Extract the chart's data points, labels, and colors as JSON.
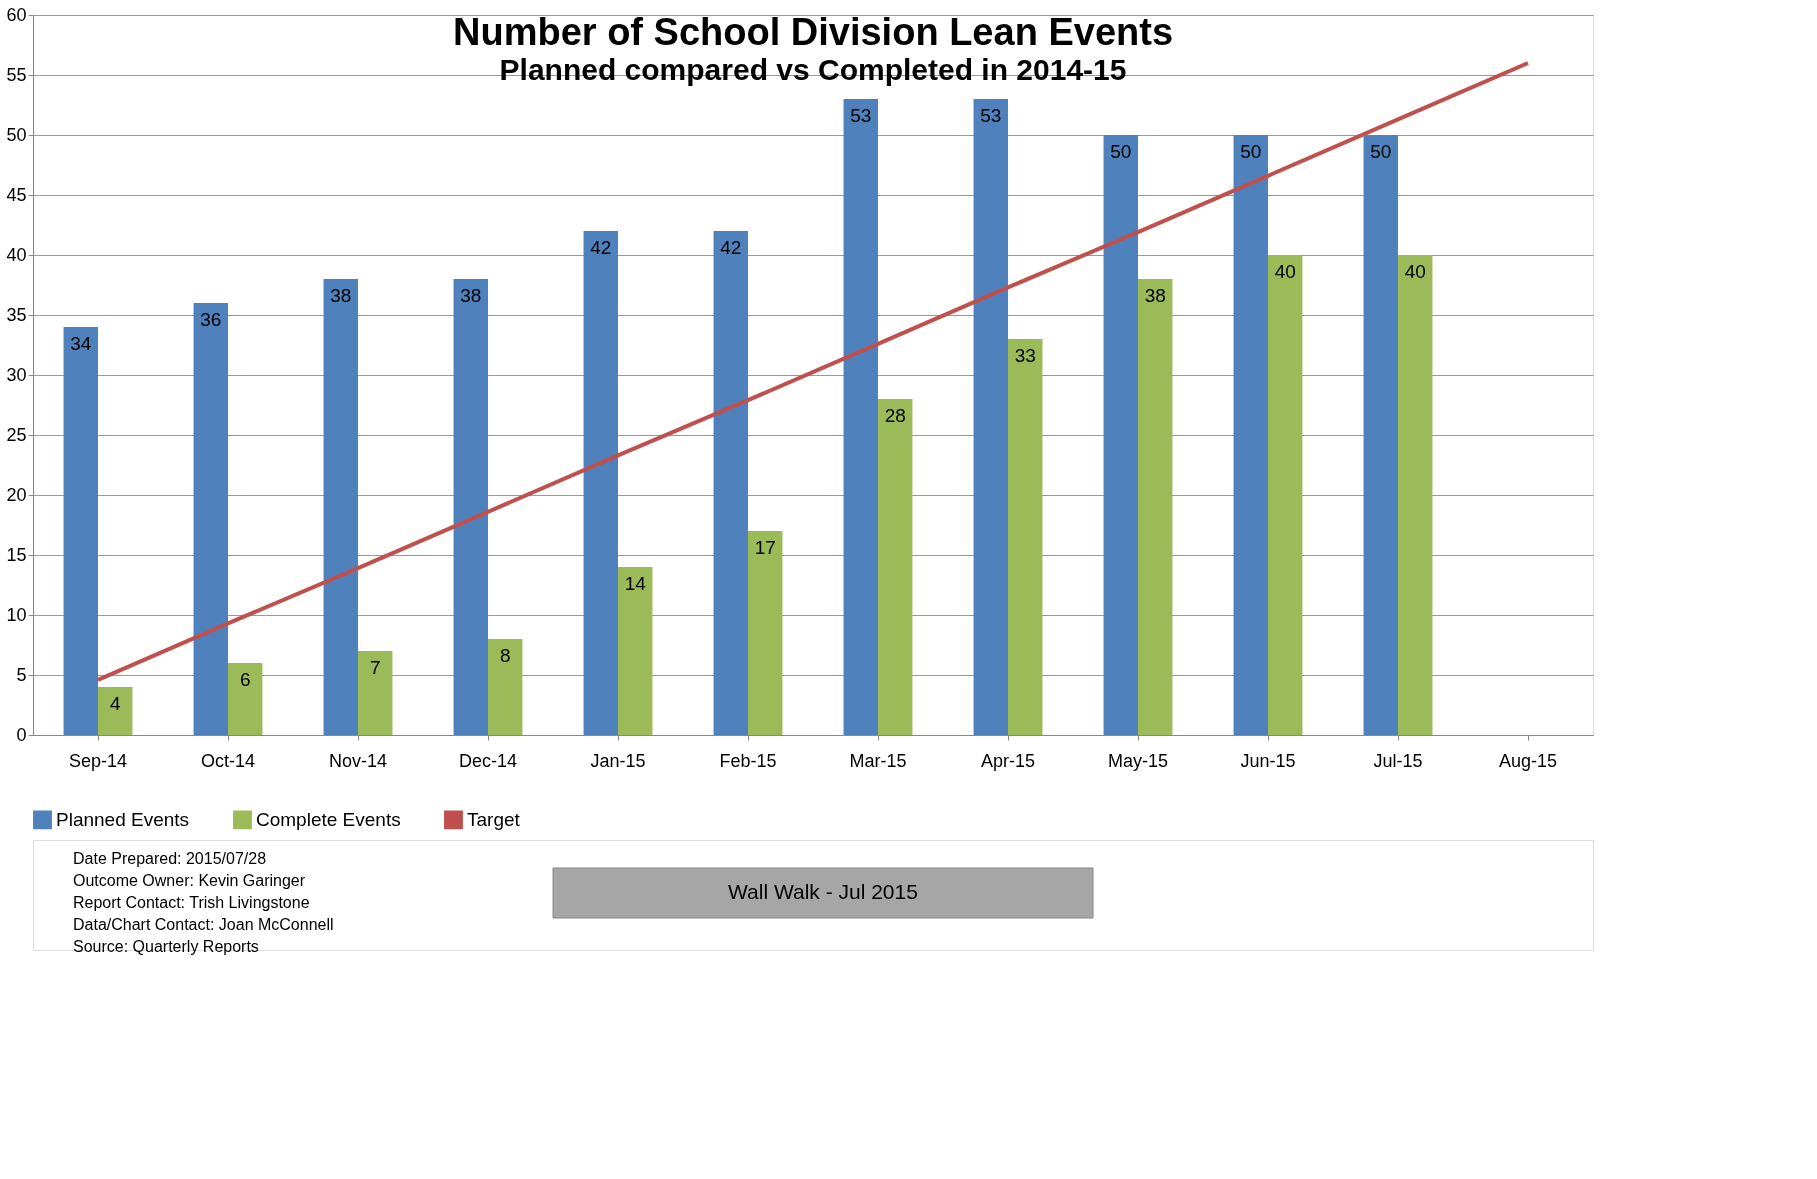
{
  "chart_data": {
    "type": "bar",
    "title": "Number of School Division Lean Events",
    "subtitle": "Planned compared vs Completed in 2014-15",
    "categories": [
      "Sep-14",
      "Oct-14",
      "Nov-14",
      "Dec-14",
      "Jan-15",
      "Feb-15",
      "Mar-15",
      "Apr-15",
      "May-15",
      "Jun-15",
      "Jul-15",
      "Aug-15"
    ],
    "series": [
      {
        "name": "Planned Events",
        "color": "#4f81bd",
        "values": [
          34,
          36,
          38,
          38,
          42,
          42,
          53,
          53,
          50,
          50,
          50,
          null
        ],
        "value_labels": [
          "34",
          "36",
          "38",
          "38",
          "42",
          "42",
          "53",
          "53",
          "50",
          "50",
          "50",
          null
        ]
      },
      {
        "name": "Complete Events",
        "color": "#9bbb59",
        "values": [
          4,
          6,
          7,
          8,
          14,
          17,
          28,
          33,
          38,
          40,
          40,
          null
        ],
        "value_labels": [
          "4",
          "6",
          "7",
          "8",
          "14",
          "17",
          "28",
          "33",
          "38",
          "40",
          "40",
          null
        ]
      },
      {
        "name": "Target",
        "type": "line",
        "color": "#c0504d",
        "values": [
          4.6,
          9.3,
          13.9,
          18.6,
          23.3,
          27.9,
          32.6,
          37.3,
          41.9,
          46.6,
          51.3,
          56
        ]
      }
    ],
    "ylim": [
      0,
      60
    ],
    "yticks": [
      0,
      5,
      10,
      15,
      20,
      25,
      30,
      35,
      40,
      45,
      50,
      55,
      60
    ],
    "grid": "y",
    "legend": "bottom",
    "annotations": [
      "Date Prepared: 2015/07/28",
      "Outcome Owner: Kevin Garinger",
      "Report Contact: Trish Livingstone",
      "Data/Chart  Contact: Joan McConnell",
      "Source: Quarterly Reports",
      "Wall Walk -   Jul 2015"
    ]
  }
}
